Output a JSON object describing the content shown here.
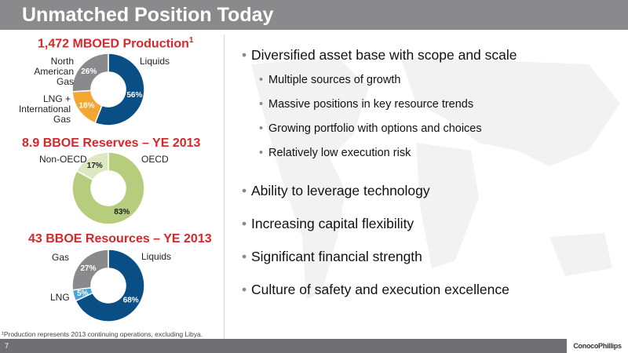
{
  "slide": {
    "title": "Unmatched Position Today",
    "page_number": "7",
    "logo": "ConocoPhillips",
    "footnote": "¹Production represents 2013 continuing operations, excluding Libya."
  },
  "colors": {
    "title_bar": "#8a8a8c",
    "accent_red": "#d8262b",
    "liquids_blue": "#0a4e86",
    "lng_orange": "#f4a633",
    "gas_gray": "#8a8a8c",
    "oecd_green": "#b6cd7e",
    "nonoecd_lightgreen": "#dde8c0",
    "lng_lightblue": "#4aa4d8"
  },
  "chart_data": [
    {
      "type": "pie",
      "title": "1,472 MBOED Production",
      "title_superscript": "1",
      "categories": [
        "Liquids",
        "LNG + International Gas",
        "North American Gas"
      ],
      "values": [
        56,
        18,
        26
      ],
      "value_labels": [
        "56%",
        "18%",
        "26%"
      ],
      "colors": [
        "#0a4e86",
        "#f4a633",
        "#8a8a8c"
      ]
    },
    {
      "type": "pie",
      "title": "8.9 BBOE Reserves – YE 2013",
      "categories": [
        "OECD",
        "Non-OECD"
      ],
      "values": [
        83,
        17
      ],
      "value_labels": [
        "83%",
        "17%"
      ],
      "colors": [
        "#b6cd7e",
        "#dde8c0"
      ]
    },
    {
      "type": "pie",
      "title": "43 BBOE Resources – YE 2013",
      "categories": [
        "Liquids",
        "LNG",
        "Gas"
      ],
      "values": [
        68,
        5,
        27
      ],
      "value_labels": [
        "68%",
        "5%",
        "27%"
      ],
      "colors": [
        "#0a4e86",
        "#4aa4d8",
        "#8a8a8c"
      ]
    }
  ],
  "chart_labels": {
    "production": {
      "liquids": "Liquids",
      "lng_intl_lines": [
        "LNG +",
        "International",
        "Gas"
      ],
      "na_gas_lines": [
        "North",
        "American",
        "Gas"
      ]
    },
    "reserves": {
      "oecd": "OECD",
      "non_oecd": "Non-OECD"
    },
    "resources": {
      "liquids": "Liquids",
      "lng": "LNG",
      "gas": "Gas"
    }
  },
  "bullets": [
    {
      "level": 1,
      "text": "Diversified asset base with scope and scale"
    },
    {
      "level": 2,
      "text": "Multiple sources of growth"
    },
    {
      "level": 2,
      "text": "Massive positions in key resource trends"
    },
    {
      "level": 2,
      "text": "Growing portfolio with options and choices"
    },
    {
      "level": 2,
      "text": "Relatively low execution risk"
    },
    {
      "level": 1,
      "text": "Ability to leverage technology"
    },
    {
      "level": 1,
      "text": "Increasing capital flexibility"
    },
    {
      "level": 1,
      "text": "Significant financial strength"
    },
    {
      "level": 1,
      "text": "Culture of safety and execution excellence"
    }
  ]
}
